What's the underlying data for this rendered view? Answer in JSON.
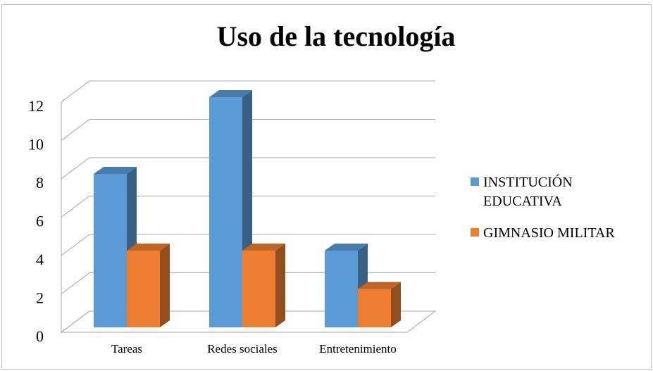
{
  "chart_data": {
    "type": "bar3d",
    "title": "Uso de la tecnología",
    "categories": [
      "Tareas",
      "Redes sociales",
      "Entretenimiento"
    ],
    "series": [
      {
        "name": "INSTITUCIÓN EDUCATIVA",
        "color": "#5b9bd5",
        "values": [
          8,
          12,
          4
        ]
      },
      {
        "name": "GIMNASIO MILITAR",
        "color": "#ed7d31",
        "values": [
          4,
          4,
          2
        ]
      }
    ],
    "ylim": [
      0,
      12
    ],
    "yticks": [
      0,
      2,
      4,
      6,
      8,
      10,
      12
    ],
    "grid": true,
    "legend": "right"
  }
}
